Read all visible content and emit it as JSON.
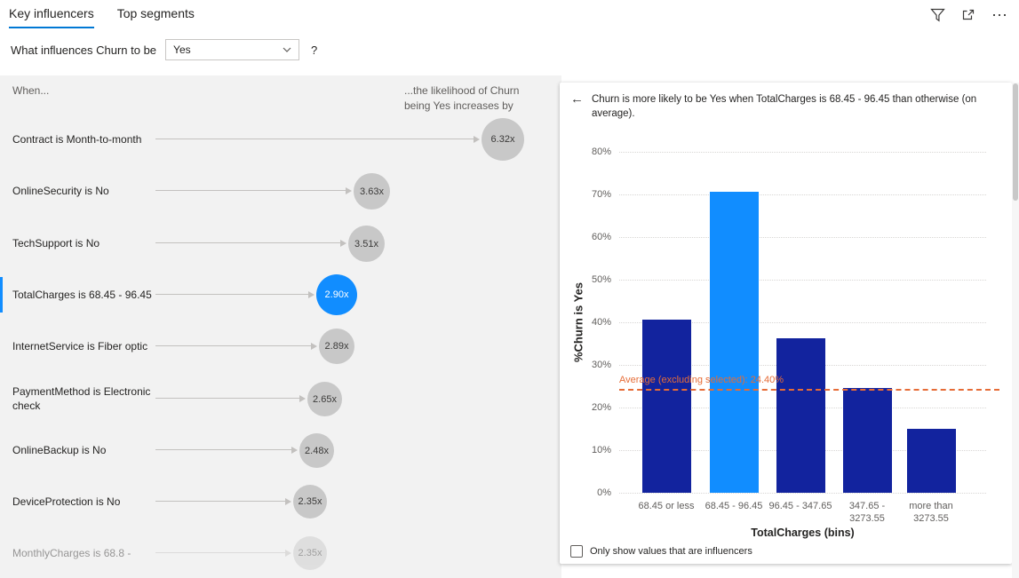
{
  "colors": {
    "accent": "#0078D4",
    "bar_default": "#12239E",
    "bar_selected": "#118DFF",
    "bubble_default": "#C8C8C8",
    "bubble_selected": "#118DFF",
    "average_line": "#E66C37",
    "panel_background": "#F2F2F2"
  },
  "header": {
    "tabs": [
      {
        "label": "Key influencers",
        "selected": true
      },
      {
        "label": "Top segments",
        "selected": false
      }
    ],
    "more_options_glyph": "⋯"
  },
  "question": {
    "prefix": "What influences Churn to be",
    "dropdown_value": "Yes",
    "help_glyph": "?"
  },
  "influencers_panel": {
    "when_header": "When...",
    "likelihood_header": "...the likelihood of Churn being Yes increases by",
    "items": [
      {
        "label": "Contract is Month-to-month",
        "value": "6.32x",
        "selected": false
      },
      {
        "label": "OnlineSecurity is No",
        "value": "3.63x",
        "selected": false
      },
      {
        "label": "TechSupport is No",
        "value": "3.51x",
        "selected": false
      },
      {
        "label": "TotalCharges is 68.45 - 96.45",
        "value": "2.90x",
        "selected": true
      },
      {
        "label": "InternetService is Fiber optic",
        "value": "2.89x",
        "selected": false
      },
      {
        "label": "PaymentMethod is Electronic check",
        "value": "2.65x",
        "selected": false
      },
      {
        "label": "OnlineBackup is No",
        "value": "2.48x",
        "selected": false
      },
      {
        "label": "DeviceProtection is No",
        "value": "2.35x",
        "selected": false
      },
      {
        "label": "MonthlyCharges is 68.8 -",
        "value": "2.35x",
        "selected": false,
        "faded": true
      }
    ]
  },
  "detail_panel": {
    "back_glyph": "←",
    "title": "Churn is more likely to be Yes when TotalCharges is 68.45 - 96.45 than otherwise (on average).",
    "checkbox_label": "Only show values that are influencers",
    "checkbox_checked": false
  },
  "chart_data": {
    "type": "bar",
    "categories": [
      "68.45 or less",
      "68.45 - 96.45",
      "96.45 - 347.65",
      "347.65 - 3273.55",
      "more than 3273.55"
    ],
    "values": [
      40.6,
      70.6,
      36.2,
      24.6,
      15.0
    ],
    "selected_index": 1,
    "xlabel": "TotalCharges (bins)",
    "ylabel": "%Churn is Yes",
    "ylim": [
      0,
      80
    ],
    "ytick_step": 10,
    "ytick_labels": [
      "0%",
      "10%",
      "20%",
      "30%",
      "40%",
      "50%",
      "60%",
      "70%",
      "80%"
    ],
    "grid": "dotted horizontal",
    "legend": "none",
    "average_line": {
      "value": 24.4,
      "label": "Average (excluding selected): 24.40%"
    }
  }
}
